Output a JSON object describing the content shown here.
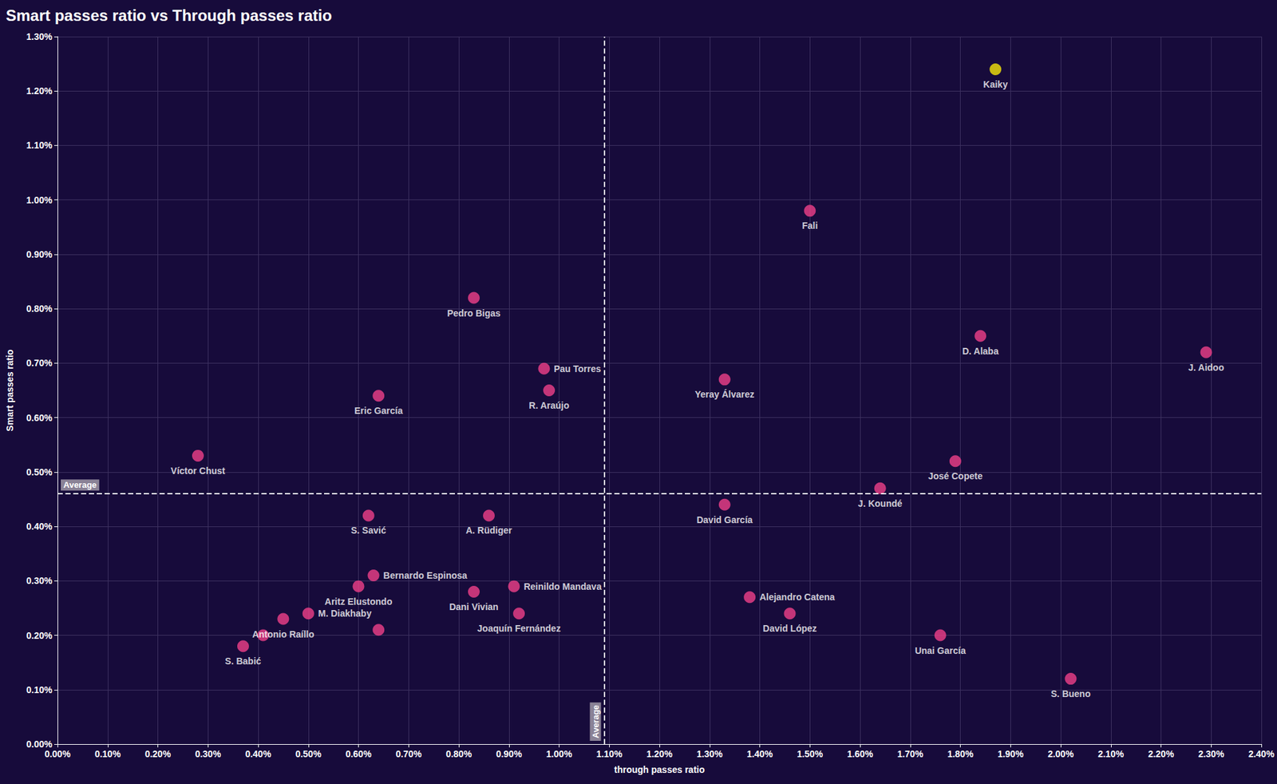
{
  "chart_data": {
    "type": "scatter",
    "title": "Smart passes ratio vs Through passes ratio",
    "x_label": "through passes ratio",
    "y_label": "Smart passes ratio",
    "labels": [
      "Kaiky",
      "Fali",
      "Pedro Bigas",
      "Pau Torres",
      "R. Araújo",
      "Eric García",
      "Víctor Chust",
      "Yeray Álvarez",
      "D. Alaba",
      "J. Aidoo",
      "José Copete",
      "J. Koundé",
      "David García",
      "S. Savić",
      "A. Rüdiger",
      "Bernardo Espinosa",
      "Aritz Elustondo",
      "M. Diakhaby",
      "Antonio Raíllo",
      null,
      "S. Babić",
      null,
      "Dani Vivian",
      "Reinildo Mandava",
      "Joaquín Fernández",
      "Alejandro Catena",
      "David López",
      "Unai García",
      "S. Bueno"
    ],
    "x": [
      1.87,
      1.5,
      0.83,
      0.97,
      0.98,
      0.64,
      0.28,
      1.33,
      1.84,
      2.29,
      1.79,
      1.64,
      1.33,
      0.62,
      0.86,
      0.63,
      0.6,
      0.5,
      0.45,
      0.41,
      0.37,
      0.64,
      0.83,
      0.91,
      0.92,
      1.38,
      1.46,
      1.76,
      2.02
    ],
    "y": [
      1.24,
      0.98,
      0.82,
      0.69,
      0.65,
      0.64,
      0.53,
      0.67,
      0.75,
      0.72,
      0.52,
      0.47,
      0.44,
      0.42,
      0.42,
      0.31,
      0.29,
      0.24,
      0.23,
      0.2,
      0.18,
      0.21,
      0.28,
      0.29,
      0.24,
      0.27,
      0.24,
      0.2,
      0.12
    ],
    "colors": [
      "#f5e50a",
      "#f0408a",
      "#f0408a",
      "#f0408a",
      "#f0408a",
      "#f0408a",
      "#f0408a",
      "#f0408a",
      "#f0408a",
      "#f0408a",
      "#f0408a",
      "#f0408a",
      "#f0408a",
      "#f0408a",
      "#f0408a",
      "#f0408a",
      "#f0408a",
      "#f0408a",
      "#f0408a",
      "#f0408a",
      "#f0408a",
      "#f0408a",
      "#f0408a",
      "#f0408a",
      "#f0408a",
      "#f0408a",
      "#f0408a",
      "#f0408a",
      "#f0408a"
    ],
    "xlim": [
      0,
      2.4
    ],
    "ylim": [
      0,
      1.3
    ],
    "xticks": [
      {
        "value": 0,
        "label": "0.00%"
      },
      {
        "value": 0.1,
        "label": "0.10%"
      },
      {
        "value": 0.2,
        "label": "0.20%"
      },
      {
        "value": 0.3,
        "label": "0.30%"
      },
      {
        "value": 0.4,
        "label": "0.40%"
      },
      {
        "value": 0.5,
        "label": "0.50%"
      },
      {
        "value": 0.6,
        "label": "0.60%"
      },
      {
        "value": 0.7,
        "label": "0.70%"
      },
      {
        "value": 0.8,
        "label": "0.80%"
      },
      {
        "value": 0.9,
        "label": "0.90%"
      },
      {
        "value": 1.0,
        "label": "1.00%"
      },
      {
        "value": 1.1,
        "label": "1.10%"
      },
      {
        "value": 1.2,
        "label": "1.20%"
      },
      {
        "value": 1.3,
        "label": "1.30%"
      },
      {
        "value": 1.4,
        "label": "1.40%"
      },
      {
        "value": 1.5,
        "label": "1.50%"
      },
      {
        "value": 1.6,
        "label": "1.60%"
      },
      {
        "value": 1.7,
        "label": "1.70%"
      },
      {
        "value": 1.8,
        "label": "1.80%"
      },
      {
        "value": 1.9,
        "label": "1.90%"
      },
      {
        "value": 2.0,
        "label": "2.00%"
      },
      {
        "value": 2.1,
        "label": "2.10%"
      },
      {
        "value": 2.2,
        "label": "2.20%"
      },
      {
        "value": 2.3,
        "label": "2.30%"
      },
      {
        "value": 2.4,
        "label": "2.40%"
      }
    ],
    "yticks": [
      {
        "value": 0,
        "label": "0.00%"
      },
      {
        "value": 0.1,
        "label": "0.10%"
      },
      {
        "value": 0.2,
        "label": "0.20%"
      },
      {
        "value": 0.3,
        "label": "0.30%"
      },
      {
        "value": 0.4,
        "label": "0.40%"
      },
      {
        "value": 0.5,
        "label": "0.50%"
      },
      {
        "value": 0.6,
        "label": "0.60%"
      },
      {
        "value": 0.7,
        "label": "0.70%"
      },
      {
        "value": 0.8,
        "label": "0.80%"
      },
      {
        "value": 0.9,
        "label": "0.90%"
      },
      {
        "value": 1.0,
        "label": "1.00%"
      },
      {
        "value": 1.1,
        "label": "1.10%"
      },
      {
        "value": 1.2,
        "label": "1.20%"
      },
      {
        "value": 1.3,
        "label": "1.30%"
      }
    ],
    "grid": true,
    "annotations": [
      {
        "axis": "x",
        "value": 1.09,
        "label": "Average"
      },
      {
        "axis": "y",
        "value": 0.46,
        "label": "Average"
      }
    ]
  }
}
